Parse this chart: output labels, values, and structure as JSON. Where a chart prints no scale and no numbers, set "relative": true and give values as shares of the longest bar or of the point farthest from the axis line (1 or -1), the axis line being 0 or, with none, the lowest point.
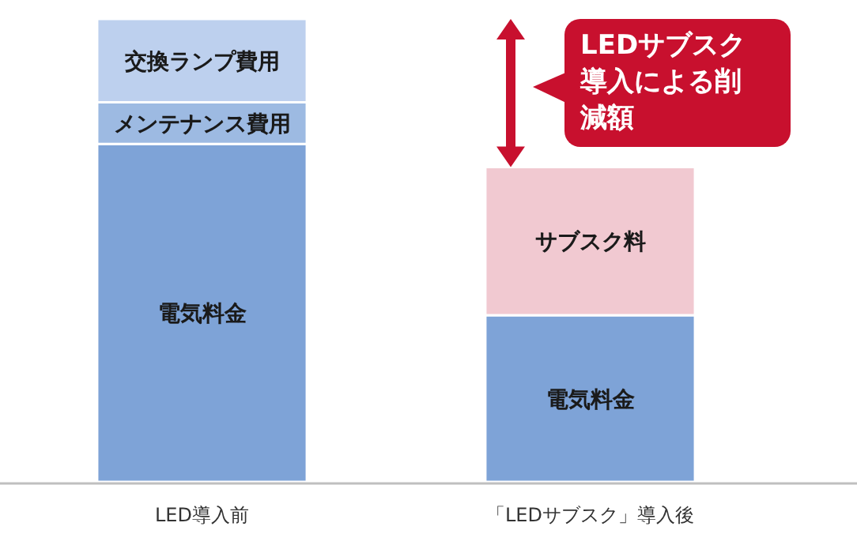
{
  "chart_data": {
    "type": "bar",
    "stacked": true,
    "relative": true,
    "categories": [
      "LED導入前",
      "「LEDサブスク」導入後"
    ],
    "series": [
      {
        "name": "電気料金",
        "color": "#7ea3d7",
        "values": [
          0.73,
          0.36
        ]
      },
      {
        "name": "メンテナンス費用",
        "color": "#9dbae2",
        "values": [
          0.09,
          null
        ]
      },
      {
        "name": "交換ランプ費用",
        "color": "#bdd0ee",
        "values": [
          0.18,
          null
        ]
      },
      {
        "name": "サブスク料",
        "color": "#f1c9d1",
        "values": [
          null,
          0.32
        ]
      }
    ],
    "annotations": [
      "LEDサブスク導入による削減額"
    ]
  }
}
